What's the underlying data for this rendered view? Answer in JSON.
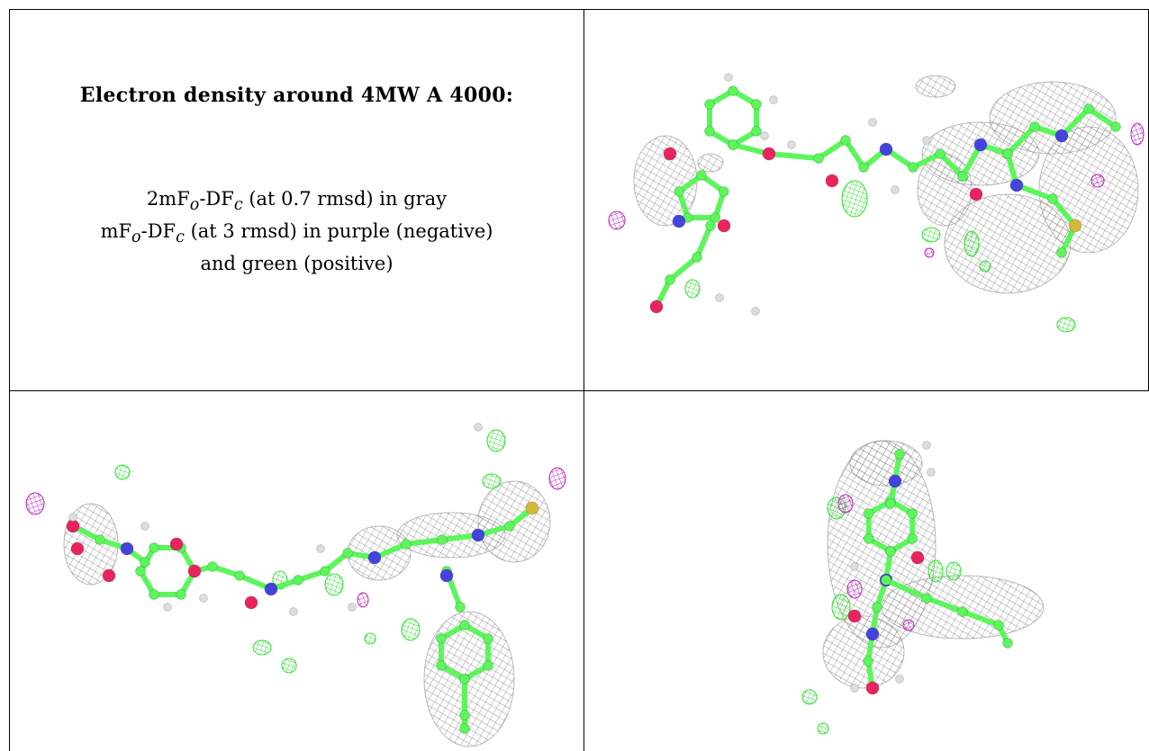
{
  "caption": {
    "title": "Electron density around 4MW A 4000:",
    "line1": {
      "pre": "2mF",
      "sub_o": "o",
      "mid": "-DF",
      "sub_c": "c",
      "post": " (at 0.7 rmsd) in gray"
    },
    "line2": {
      "pre": "mF",
      "sub_o": "o",
      "mid": "-DF",
      "sub_c": "c",
      "post": " (at 3 rmsd) in purple (negative)"
    },
    "line3": "and green (positive)"
  },
  "colors": {
    "carbon": "#5cf65c",
    "nitrogen": "#4444dd",
    "oxygen": "#e8245e",
    "hydrogen": "#dddddd",
    "sulfur": "#d4b83a",
    "density_gray": "#8c8c8c",
    "density_green": "#2fe02f",
    "density_purple": "#c21ec2"
  },
  "panels": [
    {
      "view": "top-right"
    },
    {
      "view": "bottom-left"
    },
    {
      "view": "bottom-right"
    }
  ]
}
